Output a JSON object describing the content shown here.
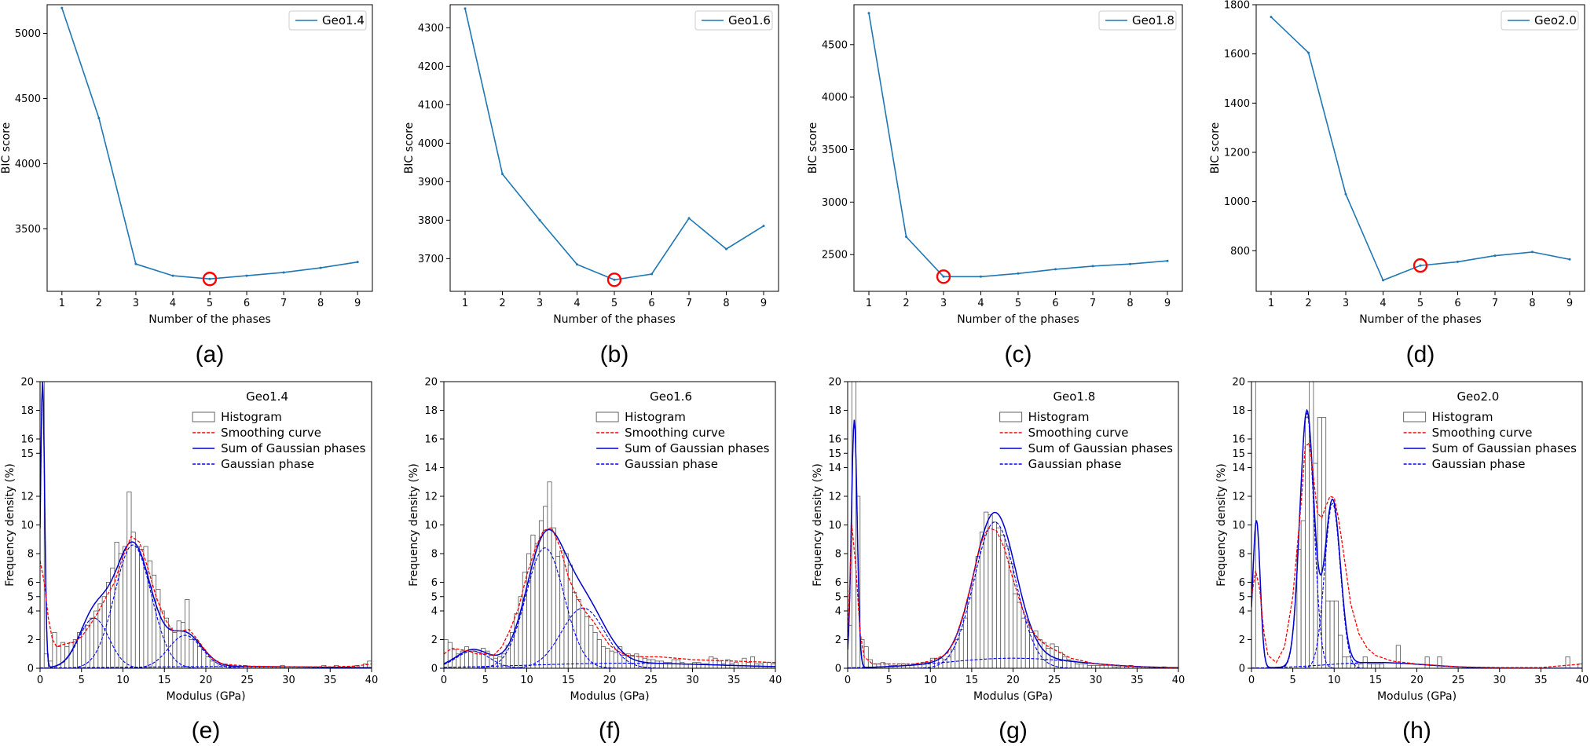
{
  "figure_labels": [
    "(a)",
    "(b)",
    "(c)",
    "(d)",
    "(e)",
    "(f)",
    "(g)",
    "(h)"
  ],
  "colors": {
    "bic_line": "#1f77b4",
    "marker": "#ff0000",
    "smoothing": "#ff0000",
    "gaussian_sum": "#0000cc",
    "gaussian_phase": "#0000ff",
    "histogram_edge": "#555555",
    "frame": "#000000"
  },
  "chart_data": [
    {
      "type": "line",
      "panel": "(a)",
      "xlabel": "Number of the phases",
      "ylabel": "BIC score",
      "x": [
        1,
        2,
        3,
        4,
        5,
        6,
        7,
        8,
        9
      ],
      "xticks": [
        1,
        2,
        3,
        4,
        5,
        6,
        7,
        8,
        9
      ],
      "xlim": [
        0.6,
        9.4
      ],
      "ylim": [
        3020,
        5220
      ],
      "yticks": [
        3500,
        4000,
        4500,
        5000
      ],
      "series": [
        {
          "name": "Geo1.4",
          "values": [
            5195,
            4350,
            3230,
            3140,
            3115,
            3140,
            3165,
            3200,
            3245
          ]
        }
      ],
      "highlight": {
        "x": 5,
        "y": 3115
      },
      "legend": "top-right"
    },
    {
      "type": "line",
      "panel": "(b)",
      "xlabel": "Number of the phases",
      "ylabel": "BIC score",
      "x": [
        1,
        2,
        3,
        4,
        5,
        6,
        7,
        8,
        9
      ],
      "xticks": [
        1,
        2,
        3,
        4,
        5,
        6,
        7,
        8,
        9
      ],
      "xlim": [
        0.6,
        9.4
      ],
      "ylim": [
        3615,
        4360
      ],
      "yticks": [
        3700,
        3800,
        3900,
        4000,
        4100,
        4200,
        4300
      ],
      "series": [
        {
          "name": "Geo1.6",
          "values": [
            4350,
            3920,
            3800,
            3685,
            3645,
            3660,
            3805,
            3725,
            3785
          ]
        }
      ],
      "highlight": {
        "x": 5,
        "y": 3645
      },
      "legend": "top-right"
    },
    {
      "type": "line",
      "panel": "(c)",
      "xlabel": "Number of the phases",
      "ylabel": "BIC score",
      "x": [
        1,
        2,
        3,
        4,
        5,
        6,
        7,
        8,
        9
      ],
      "xticks": [
        1,
        2,
        3,
        4,
        5,
        6,
        7,
        8,
        9
      ],
      "xlim": [
        0.6,
        9.4
      ],
      "ylim": [
        2150,
        4880
      ],
      "yticks": [
        2500,
        3000,
        3500,
        4000,
        4500
      ],
      "series": [
        {
          "name": "Geo1.8",
          "values": [
            4800,
            2670,
            2290,
            2290,
            2320,
            2360,
            2390,
            2410,
            2440
          ]
        }
      ],
      "highlight": {
        "x": 3,
        "y": 2290
      },
      "legend": "top-right"
    },
    {
      "type": "line",
      "panel": "(d)",
      "xlabel": "Number of the phases",
      "ylabel": "BIC score",
      "x": [
        1,
        2,
        3,
        4,
        5,
        6,
        7,
        8,
        9
      ],
      "xticks": [
        1,
        2,
        3,
        4,
        5,
        6,
        7,
        8,
        9
      ],
      "xlim": [
        0.6,
        9.4
      ],
      "ylim": [
        635,
        1800
      ],
      "yticks": [
        800,
        1000,
        1200,
        1400,
        1600,
        1800
      ],
      "series": [
        {
          "name": "Geo2.0",
          "values": [
            1750,
            1605,
            1030,
            680,
            740,
            755,
            780,
            795,
            765
          ]
        }
      ],
      "highlight": {
        "x": 5,
        "y": 740
      },
      "legend": "top-right"
    },
    {
      "type": "histogram",
      "panel": "(e)",
      "title": "Geo1.4",
      "xlabel": "Modulus (GPa)",
      "ylabel": "Frequency density (%)",
      "xlim": [
        0,
        40
      ],
      "ylim": [
        0,
        20
      ],
      "xticks": [
        0,
        5,
        10,
        15,
        20,
        25,
        30,
        35,
        40
      ],
      "yticks": [
        0,
        2,
        4,
        5,
        6,
        8,
        10,
        12,
        15,
        16,
        18,
        20
      ],
      "bin_width": 0.5,
      "histogram": [
        20,
        1,
        0.5,
        2.5,
        1.5,
        1.8,
        1.5,
        1.8,
        2,
        2.5,
        2.8,
        3,
        3.5,
        4,
        4.5,
        5,
        6,
        7,
        8.8,
        8,
        8.5,
        12.3,
        9.5,
        8.5,
        8.3,
        8.5,
        7.5,
        6.5,
        5.5,
        4,
        3.5,
        2.8,
        2.5,
        3.3,
        3.2,
        4.8,
        2,
        2,
        1.5,
        1.3,
        0.8,
        0.5,
        0.5,
        0.3,
        0.2,
        0.2,
        0.1,
        0.1,
        0.1,
        0.2,
        0.1,
        0.1,
        0.1,
        0.1,
        0.1,
        0,
        0.1,
        0,
        0.2,
        0,
        0,
        0.1,
        0,
        0,
        0.1,
        0,
        0.1,
        0,
        0.2,
        0,
        0,
        0.2,
        0,
        0,
        0.1,
        0,
        0.2,
        0,
        0.3,
        0.5
      ],
      "smoothing_curve": {
        "x": [
          0,
          0.5,
          1,
          1.5,
          2,
          3,
          4,
          5,
          6,
          7,
          8,
          9,
          10,
          11,
          12,
          13,
          14,
          15,
          16,
          17,
          18,
          19,
          20,
          21,
          22,
          25,
          30,
          35,
          38,
          40
        ],
        "y": [
          7.5,
          6,
          3.5,
          2,
          1.5,
          1.7,
          1.8,
          2.2,
          3,
          3.9,
          5,
          6,
          7.8,
          9.2,
          8.8,
          7,
          5,
          3.5,
          2.6,
          2.6,
          2.7,
          2,
          1.2,
          0.6,
          0.3,
          0.15,
          0.1,
          0.1,
          0.15,
          0.3
        ]
      },
      "gaussian_phases": [
        {
          "mean": 0.3,
          "sd": 0.25,
          "peak": 20
        },
        {
          "mean": 6.5,
          "sd": 1.8,
          "peak": 3.5
        },
        {
          "mean": 11.2,
          "sd": 2.2,
          "peak": 8.6
        },
        {
          "mean": 17.5,
          "sd": 2.0,
          "peak": 2.3
        },
        {
          "mean": 22,
          "sd": 12,
          "peak": 0.12
        }
      ],
      "legend_entries": [
        "Histogram",
        "Smoothing curve",
        "Sum of Gaussian phases",
        "Gaussian phase"
      ],
      "legend": "upper-center-right"
    },
    {
      "type": "histogram",
      "panel": "(f)",
      "title": "Geo1.6",
      "xlabel": "Modulus (GPa)",
      "ylabel": "Frequency density (%)",
      "xlim": [
        0,
        40
      ],
      "ylim": [
        0,
        20
      ],
      "xticks": [
        0,
        5,
        10,
        15,
        20,
        25,
        30,
        35,
        40
      ],
      "yticks": [
        0,
        2,
        4,
        5,
        6,
        8,
        10,
        12,
        14,
        16,
        18,
        20
      ],
      "bin_width": 0.5,
      "histogram": [
        2,
        1.8,
        1.3,
        1,
        1.2,
        1.5,
        1.3,
        1.2,
        1.1,
        1.4,
        1.2,
        0.9,
        0.7,
        0.8,
        1,
        1.6,
        2.5,
        3.8,
        5,
        6.7,
        8,
        9.3,
        8.7,
        10.3,
        11.3,
        13,
        9.8,
        7.8,
        8.2,
        8,
        7.2,
        5.3,
        4.8,
        4.2,
        3.6,
        3,
        2.5,
        2,
        1.5,
        1.4,
        1.2,
        1.1,
        1.5,
        0.9,
        1,
        0.9,
        1,
        0.8,
        0.7,
        0.6,
        0.6,
        0.5,
        0.5,
        0.4,
        0.4,
        0.6,
        0.6,
        0.4,
        0.3,
        0.3,
        0.4,
        0.4,
        0.3,
        0.3,
        0.8,
        0.7,
        0.5,
        0.3,
        0.6,
        0.3,
        0.4,
        0.2,
        0.7,
        0.4,
        0.8,
        0.3,
        0.3,
        0.4,
        0.4,
        0.3
      ],
      "smoothing_curve": {
        "x": [
          0,
          1,
          2,
          3,
          4,
          5,
          6,
          7,
          8,
          9,
          10,
          11,
          12,
          13,
          14,
          15,
          16,
          17,
          18,
          19,
          20,
          21,
          22,
          24,
          26,
          28,
          30,
          35,
          40
        ],
        "y": [
          1,
          1.4,
          1.3,
          1.2,
          1,
          1,
          0.9,
          1.5,
          2.7,
          4.2,
          6.5,
          8.3,
          9.6,
          9.8,
          8.5,
          6.4,
          5,
          4,
          3.3,
          2.4,
          1.6,
          1.2,
          0.9,
          0.8,
          0.8,
          0.7,
          0.6,
          0.5,
          0.4
        ]
      },
      "gaussian_phases": [
        {
          "mean": 3.5,
          "sd": 2.0,
          "peak": 1.2
        },
        {
          "mean": 12.2,
          "sd": 2.3,
          "peak": 8.4
        },
        {
          "mean": 16.8,
          "sd": 2.6,
          "peak": 4.2
        },
        {
          "mean": 22,
          "sd": 12,
          "peak": 0.35
        }
      ],
      "legend_entries": [
        "Histogram",
        "Smoothing curve",
        "Sum of Gaussian phases",
        "Gaussian phase"
      ],
      "legend": "upper-center-right"
    },
    {
      "type": "histogram",
      "panel": "(g)",
      "title": "Geo1.8",
      "xlabel": "Modulus (GPa)",
      "ylabel": "Frequency density (%)",
      "xlim": [
        0,
        40
      ],
      "ylim": [
        0,
        20
      ],
      "xticks": [
        0,
        5,
        10,
        15,
        20,
        25,
        30,
        35,
        40
      ],
      "yticks": [
        0,
        2,
        4,
        5,
        6,
        8,
        10,
        12,
        14,
        15,
        16,
        18,
        20
      ],
      "bin_width": 0.5,
      "histogram": [
        3,
        20,
        12,
        2,
        1.5,
        0.6,
        0.3,
        0.3,
        0.4,
        0.3,
        0.2,
        0.2,
        0.3,
        0.3,
        0.2,
        0.2,
        0.3,
        0.3,
        0.4,
        0.4,
        0.7,
        0.7,
        0.7,
        0.6,
        0.8,
        1.3,
        2,
        2.7,
        3.5,
        4.9,
        6.2,
        7.8,
        9.5,
        10.9,
        10.7,
        10.2,
        9.8,
        9.3,
        8.5,
        7.3,
        5.2,
        4.6,
        3.5,
        3.2,
        2.5,
        2.6,
        2,
        1.8,
        1.4,
        1.7,
        1.5,
        1.1,
        0.8,
        0.6,
        0.5,
        0.3,
        0.3,
        0.3,
        0.2,
        0.2,
        0.2,
        0.2,
        0.2,
        0.2,
        0.1,
        0.1,
        0.2,
        0.1,
        0.2,
        0.1,
        0.1,
        0.1,
        0.1,
        0.1,
        0.1,
        0,
        0.1,
        0,
        0,
        0
      ],
      "smoothing_curve": {
        "x": [
          0,
          0.5,
          1,
          1.5,
          2,
          3,
          5,
          8,
          10,
          12,
          13,
          14,
          15,
          16,
          17,
          18,
          19,
          20,
          21,
          22,
          23,
          24,
          25,
          27,
          30,
          35,
          40
        ],
        "y": [
          2,
          10,
          7,
          2.5,
          0.8,
          0.3,
          0.3,
          0.3,
          0.5,
          1,
          2,
          3.8,
          6,
          8.6,
          9.8,
          9.6,
          8.3,
          6.2,
          4.4,
          2.9,
          2.1,
          1.6,
          1.3,
          0.7,
          0.3,
          0.1,
          0.05
        ]
      },
      "gaussian_phases": [
        {
          "mean": 0.8,
          "sd": 0.35,
          "peak": 17.3
        },
        {
          "mean": 17.8,
          "sd": 2.5,
          "peak": 10.2
        },
        {
          "mean": 20,
          "sd": 8,
          "peak": 0.7
        }
      ],
      "legend_entries": [
        "Histogram",
        "Smoothing curve",
        "Sum of Gaussian phases",
        "Gaussian phase"
      ],
      "legend": "upper-center-right"
    },
    {
      "type": "histogram",
      "panel": "(h)",
      "title": "Geo2.0",
      "xlabel": "Modulus (GPa)",
      "ylabel": "Frequency density (%)",
      "xlim": [
        0,
        40
      ],
      "ylim": [
        0,
        20
      ],
      "xticks": [
        0,
        5,
        10,
        15,
        20,
        25,
        30,
        35,
        40
      ],
      "yticks": [
        0,
        2,
        4,
        5,
        6,
        8,
        10,
        12,
        14,
        15,
        16,
        18,
        20
      ],
      "bin_width": 0.5,
      "histogram": [
        20,
        0,
        0,
        0,
        0,
        0,
        0,
        0,
        0,
        0,
        0,
        8.3,
        10.3,
        17.5,
        20,
        14.3,
        17.5,
        17.5,
        4.7,
        4.7,
        4.7,
        2.3,
        0.8,
        0.8,
        0.3,
        0.3,
        0.3,
        0.8,
        0.3,
        0.3,
        0.3,
        0.3,
        0,
        0,
        0,
        1.6,
        0,
        0,
        0,
        0,
        0,
        0,
        0.8,
        0,
        0,
        0.8,
        0,
        0,
        0,
        0,
        0,
        0,
        0,
        0,
        0,
        0,
        0,
        0,
        0,
        0,
        0,
        0,
        0,
        0,
        0,
        0,
        0,
        0,
        0,
        0,
        0,
        0,
        0,
        0,
        0,
        0,
        0.8,
        0,
        0,
        0.3
      ],
      "smoothing_curve": {
        "x": [
          0,
          0.5,
          1,
          1.5,
          2,
          3,
          4,
          5,
          6,
          6.5,
          7,
          7.5,
          8,
          8.5,
          9,
          9.5,
          10,
          10.5,
          11,
          12,
          13,
          14,
          15,
          17,
          20,
          25,
          30,
          35,
          38,
          40
        ],
        "y": [
          5,
          6.8,
          5.5,
          2.5,
          0.9,
          0.4,
          1.5,
          5,
          11.5,
          15.5,
          15.7,
          13.3,
          10.8,
          10.5,
          11.3,
          12,
          11.9,
          10.5,
          8.6,
          4.5,
          2.4,
          1.4,
          0.9,
          0.5,
          0.3,
          0.1,
          0.05,
          0.05,
          0.2,
          0.3
        ]
      },
      "gaussian_phases": [
        {
          "mean": 0.6,
          "sd": 0.45,
          "peak": 10.3
        },
        {
          "mean": 6.7,
          "sd": 0.85,
          "peak": 17.8
        },
        {
          "mean": 9.8,
          "sd": 0.95,
          "peak": 11.5
        },
        {
          "mean": 15,
          "sd": 6,
          "peak": 0.4
        }
      ],
      "legend_entries": [
        "Histogram",
        "Smoothing curve",
        "Sum of Gaussian phases",
        "Gaussian phase"
      ],
      "legend": "upper-center-right"
    }
  ]
}
